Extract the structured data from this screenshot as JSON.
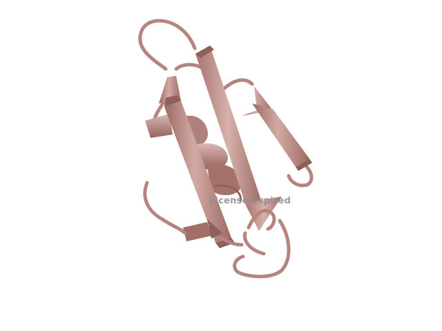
{
  "render": {
    "watermark_text": "License expired",
    "colors": {
      "background": "#ffffff",
      "strand_light": "#c99d96",
      "strand_mid": "#b27f79",
      "strand_dark": "#8f5f5a",
      "coil": "#b5847e",
      "helix": "#a87570",
      "watermark": "#8f8f8f"
    }
  }
}
